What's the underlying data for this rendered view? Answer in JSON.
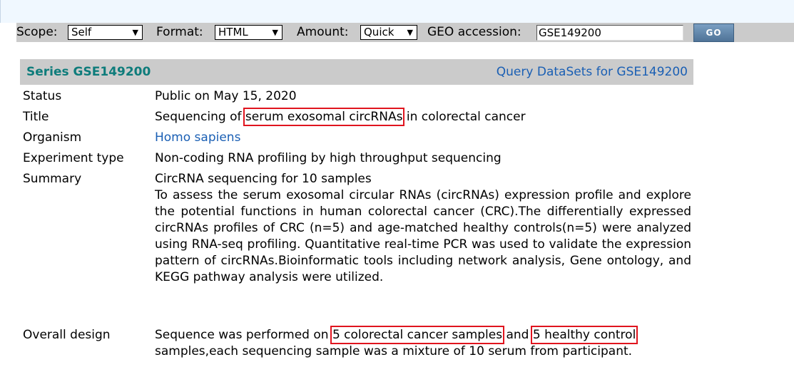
{
  "toolbar": {
    "scope_label": "Scope:",
    "scope_value": "Self",
    "format_label": "Format:",
    "format_value": "HTML",
    "amount_label": "Amount:",
    "amount_value": "Quick",
    "accession_label": "GEO accession:",
    "accession_value": "GSE149200",
    "go_label": "GO"
  },
  "series": {
    "title": "Series GSE149200",
    "query_link": "Query DataSets for GSE149200"
  },
  "fields": {
    "status_label": "Status",
    "status_value": "Public on May 15, 2020",
    "title_label": "Title",
    "title_pre": "Sequencing of ",
    "title_highlight": "serum exosomal circRNAs",
    "title_post": " in colorectal cancer",
    "organism_label": "Organism",
    "organism_value": "Homo sapiens",
    "experiment_label": "Experiment type",
    "experiment_value": "Non-coding RNA profiling by high throughput sequencing",
    "summary_label": "Summary",
    "summary_line1": "CircRNA sequencing for 10 samples",
    "summary_body": "To assess the serum exosomal circular RNAs (circRNAs) expression profile and explore the potential functions in human colorectal cancer (CRC).The differentially expressed circRNAs profiles of CRC (n=5) and age-matched healthy controls(n=5) were analyzed using RNA-seq profiling. Quantitative real-time PCR was used to validate the expression pattern of circRNAs.Bioinformatic tools including network analysis, Gene ontology, and KEGG pathway analysis were utilized.",
    "design_label": "Overall design",
    "design_pre": "Sequence was performed on ",
    "design_hl1": "5 colorectal cancer samples",
    "design_mid": " and ",
    "design_hl2": "5 healthy control",
    "design_post": " samples,each sequencing sample was a mixture of 10 serum from participant."
  },
  "colors": {
    "series_title": "#0e7c7b",
    "link": "#1a5fb4",
    "highlight_box": "#e0141e",
    "header_bg": "#cbcbcb"
  }
}
